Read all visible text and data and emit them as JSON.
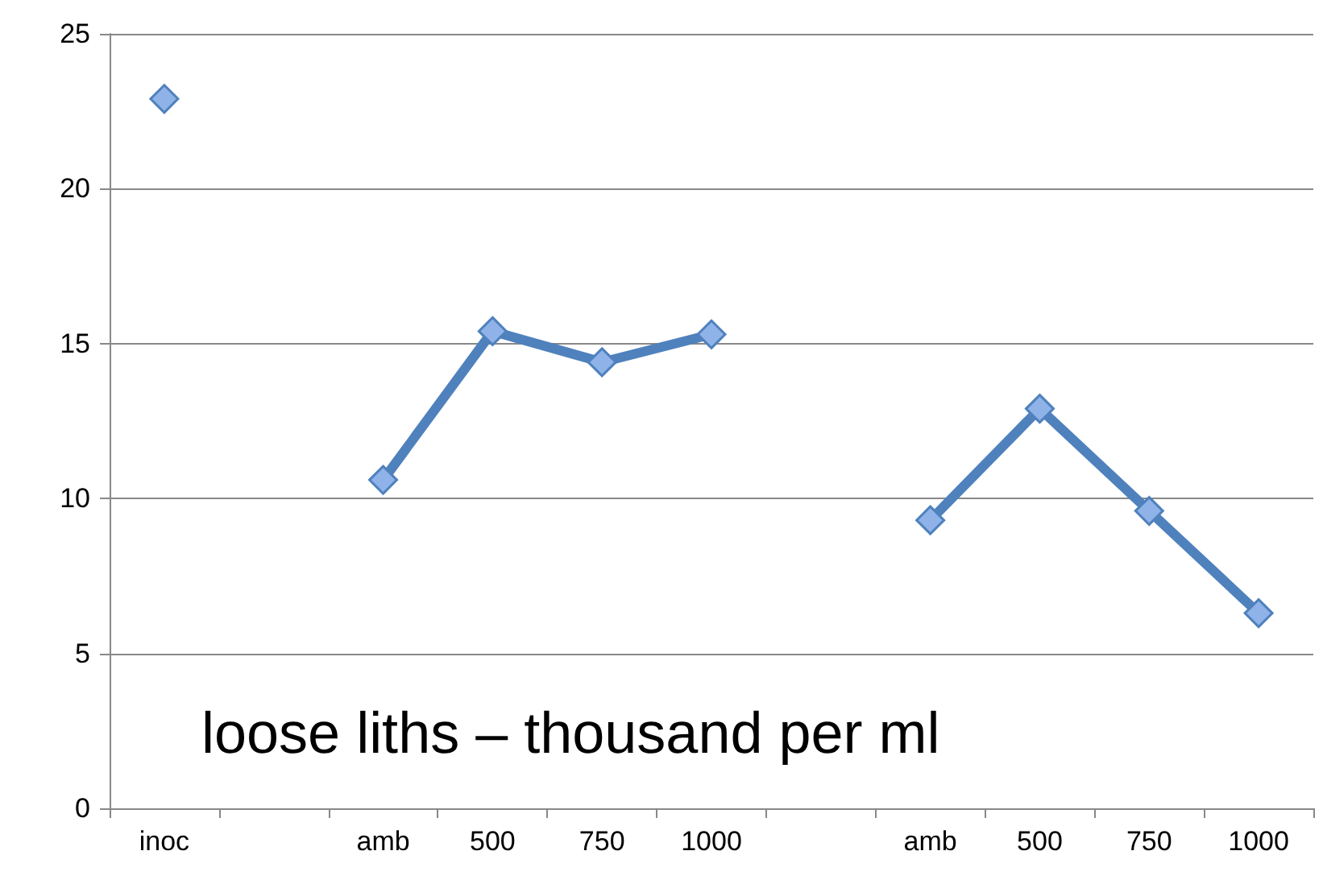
{
  "chart_data": {
    "type": "line",
    "categories": [
      "inoc",
      null,
      "amb",
      "500",
      "750",
      "1000",
      null,
      "amb",
      "500",
      "750",
      "1000"
    ],
    "series": [
      {
        "color": "#4f81bd",
        "values": [
          22.9,
          null,
          10.6,
          15.4,
          14.4,
          15.3,
          null,
          9.3,
          12.9,
          9.6,
          6.3
        ]
      }
    ],
    "ylim": [
      0,
      25
    ],
    "yticks": [
      0,
      5,
      10,
      15,
      20,
      25
    ],
    "grid": "y",
    "marker": "diamond",
    "line_style": "solid",
    "annotations": [
      "loose liths – thousand per ml"
    ]
  }
}
